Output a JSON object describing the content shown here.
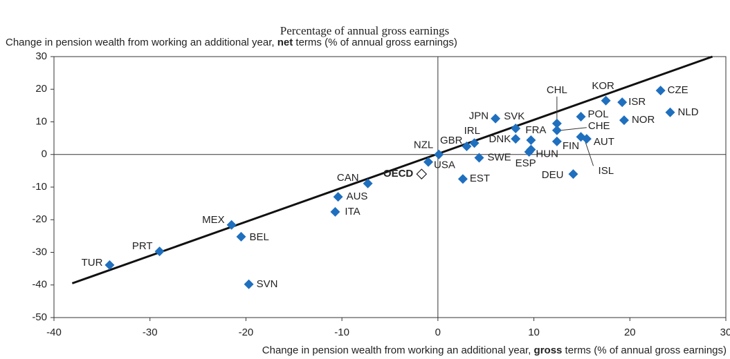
{
  "chart_data": {
    "type": "scatter",
    "subtitle": "Percentage of annual gross earnings",
    "y_label": [
      "Change in pension wealth from working an additional year, ",
      "net",
      " terms (% of annual gross earnings)"
    ],
    "x_label": [
      "Change in pension wealth from working an additional year, ",
      "gross",
      " terms (% of annual gross earnings)"
    ],
    "xlim": [
      -40,
      30
    ],
    "ylim": [
      -50,
      30
    ],
    "xticks": [
      -40,
      -30,
      -20,
      -10,
      0,
      10,
      20,
      30
    ],
    "yticks": [
      -50,
      -40,
      -30,
      -20,
      -10,
      0,
      10,
      20,
      30
    ],
    "color": "#1f6fbf",
    "highlight": "OECD",
    "trend_line": {
      "x": [
        -38.1,
        28.6
      ],
      "y": [
        -39.5,
        30
      ]
    },
    "series": [
      {
        "name": null,
        "labels": [
          "TUR",
          "PRT",
          "MEX",
          "BEL",
          "SVN",
          "ITA",
          "AUS",
          "CAN",
          "USA",
          "OECD",
          "NZL",
          "GBR",
          "IRL",
          "EST",
          "SWE",
          "JPN",
          "DNK",
          "SVK",
          "FRA",
          "ESP",
          "HUN",
          "CHL",
          "CHE",
          "FIN",
          "DEU",
          "ISL",
          "AUT",
          "POL",
          "KOR",
          "ISR",
          "NOR",
          "CZE",
          "NLD"
        ],
        "x": [
          -34.2,
          -29.0,
          -21.5,
          -20.5,
          -19.7,
          -10.7,
          -10.4,
          -7.3,
          -1.0,
          -1.7,
          0.1,
          3.0,
          3.8,
          2.6,
          4.3,
          6.0,
          8.1,
          8.1,
          9.7,
          9.5,
          9.7,
          12.4,
          12.4,
          12.4,
          14.1,
          14.9,
          15.5,
          14.9,
          17.5,
          19.2,
          19.4,
          23.2,
          24.2
        ],
        "values": [
          -33.9,
          -29.7,
          -21.6,
          -25.2,
          -39.8,
          -17.6,
          -13.0,
          -8.9,
          -2.3,
          -6.0,
          0,
          2.5,
          3.5,
          -7.5,
          -1.0,
          11.0,
          4.8,
          8.0,
          4.4,
          0.8,
          1.5,
          9.5,
          7.4,
          4.0,
          -6.0,
          5.4,
          4.8,
          11.6,
          16.5,
          16.0,
          10.5,
          19.6,
          12.9
        ]
      }
    ]
  }
}
